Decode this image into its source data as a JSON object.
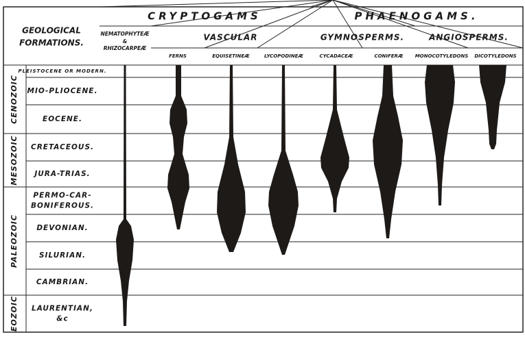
{
  "header": {
    "geological_formations": [
      "GEOLOGICAL",
      "FORMATIONS."
    ],
    "groups": [
      "CRYPTOGAMS",
      "PHAENOGAMS."
    ],
    "subgroups": [
      "VASCULAR",
      "GYMNOSPERMS.",
      "ANGIOSPERMS."
    ],
    "columns": [
      [
        "NEMATOPHYTEÆ",
        "&",
        "RHIZOCARPEÆ"
      ],
      "FERNS",
      "EQUISETINEÆ",
      "LYCOPODINEÆ",
      "CYCADACEÆ",
      "CONIFERÆ",
      "MONOCOTYLEDONS",
      "DICOTYLEDONS"
    ]
  },
  "eras": [
    "CENOZOIC",
    "MESOZOIC",
    "PALEOZOIC",
    "EOZOIC"
  ],
  "formations": [
    [
      "PLEISTOCENE OR MODERN."
    ],
    [
      "MIO-PLIOCENE."
    ],
    [
      "EOCENE."
    ],
    [
      "CRETACEOUS."
    ],
    [
      "JURA-TRIAS."
    ],
    [
      "PERMO-CAR-",
      "BONIFEROUS."
    ],
    [
      "DEVONIAN."
    ],
    [
      "SILURIAN."
    ],
    [
      "CAMBRIAN."
    ],
    [
      "LAURENTIAN,",
      "&c"
    ]
  ]
}
